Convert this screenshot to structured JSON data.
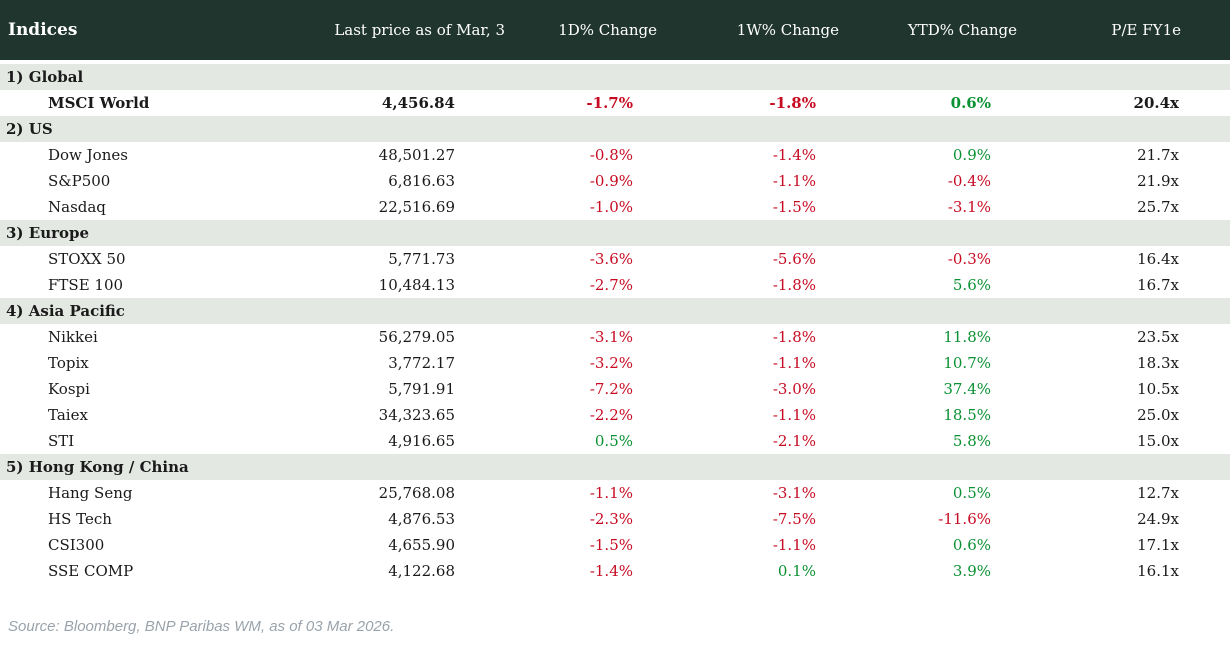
{
  "colors": {
    "header_bg": "#20352e",
    "header_text": "#ffffff",
    "section_band_bg": "#e3e8e3",
    "negative": "#c70b22",
    "positive": "#0b9133",
    "body_text": "#1a1a1a",
    "source_text": "#9aa3ab"
  },
  "chart_data": {
    "type": "table",
    "title": "Indices",
    "columns": [
      "Indices",
      "Last price as of Mar, 3",
      "1D% Change",
      "1W% Change",
      "YTD% Change",
      "P/E FY1e"
    ],
    "sections": [
      {
        "label": "1) Global",
        "rows": [
          {
            "name": "MSCI World",
            "price": "4,456.84",
            "d1": "-1.7%",
            "w1": "-1.8%",
            "ytd": "0.6%",
            "pe": "20.4x",
            "bold": true
          }
        ]
      },
      {
        "label": "2) US",
        "rows": [
          {
            "name": "Dow Jones",
            "price": "48,501.27",
            "d1": "-0.8%",
            "w1": "-1.4%",
            "ytd": "0.9%",
            "pe": "21.7x"
          },
          {
            "name": "S&P500",
            "price": "6,816.63",
            "d1": "-0.9%",
            "w1": "-1.1%",
            "ytd": "-0.4%",
            "pe": "21.9x"
          },
          {
            "name": "Nasdaq",
            "price": "22,516.69",
            "d1": "-1.0%",
            "w1": "-1.5%",
            "ytd": "-3.1%",
            "pe": "25.7x"
          }
        ]
      },
      {
        "label": "3) Europe",
        "rows": [
          {
            "name": "STOXX 50",
            "price": "5,771.73",
            "d1": "-3.6%",
            "w1": "-5.6%",
            "ytd": "-0.3%",
            "pe": "16.4x"
          },
          {
            "name": "FTSE 100",
            "price": "10,484.13",
            "d1": "-2.7%",
            "w1": "-1.8%",
            "ytd": "5.6%",
            "pe": "16.7x"
          }
        ]
      },
      {
        "label": "4) Asia Pacific",
        "rows": [
          {
            "name": "Nikkei",
            "price": "56,279.05",
            "d1": "-3.1%",
            "w1": "-1.8%",
            "ytd": "11.8%",
            "pe": "23.5x"
          },
          {
            "name": "Topix",
            "price": "3,772.17",
            "d1": "-3.2%",
            "w1": "-1.1%",
            "ytd": "10.7%",
            "pe": "18.3x"
          },
          {
            "name": "Kospi",
            "price": "5,791.91",
            "d1": "-7.2%",
            "w1": "-3.0%",
            "ytd": "37.4%",
            "pe": "10.5x"
          },
          {
            "name": "Taiex",
            "price": "34,323.65",
            "d1": "-2.2%",
            "w1": "-1.1%",
            "ytd": "18.5%",
            "pe": "25.0x"
          },
          {
            "name": "STI",
            "price": "4,916.65",
            "d1": "0.5%",
            "w1": "-2.1%",
            "ytd": "5.8%",
            "pe": "15.0x"
          }
        ]
      },
      {
        "label": "5) Hong Kong / China",
        "rows": [
          {
            "name": "Hang Seng",
            "price": "25,768.08",
            "d1": "-1.1%",
            "w1": "-3.1%",
            "ytd": "0.5%",
            "pe": "12.7x"
          },
          {
            "name": "HS Tech",
            "price": "4,876.53",
            "d1": "-2.3%",
            "w1": "-7.5%",
            "ytd": "-11.6%",
            "pe": "24.9x"
          },
          {
            "name": "CSI300",
            "price": "4,655.90",
            "d1": "-1.5%",
            "w1": "-1.1%",
            "ytd": "0.6%",
            "pe": "17.1x"
          },
          {
            "name": "SSE COMP",
            "price": "4,122.68",
            "d1": "-1.4%",
            "w1": "0.1%",
            "ytd": "3.9%",
            "pe": "16.1x"
          }
        ]
      }
    ]
  },
  "footer": {
    "source": "Source: Bloomberg, BNP Paribas WM, as of 03 Mar 2026."
  }
}
